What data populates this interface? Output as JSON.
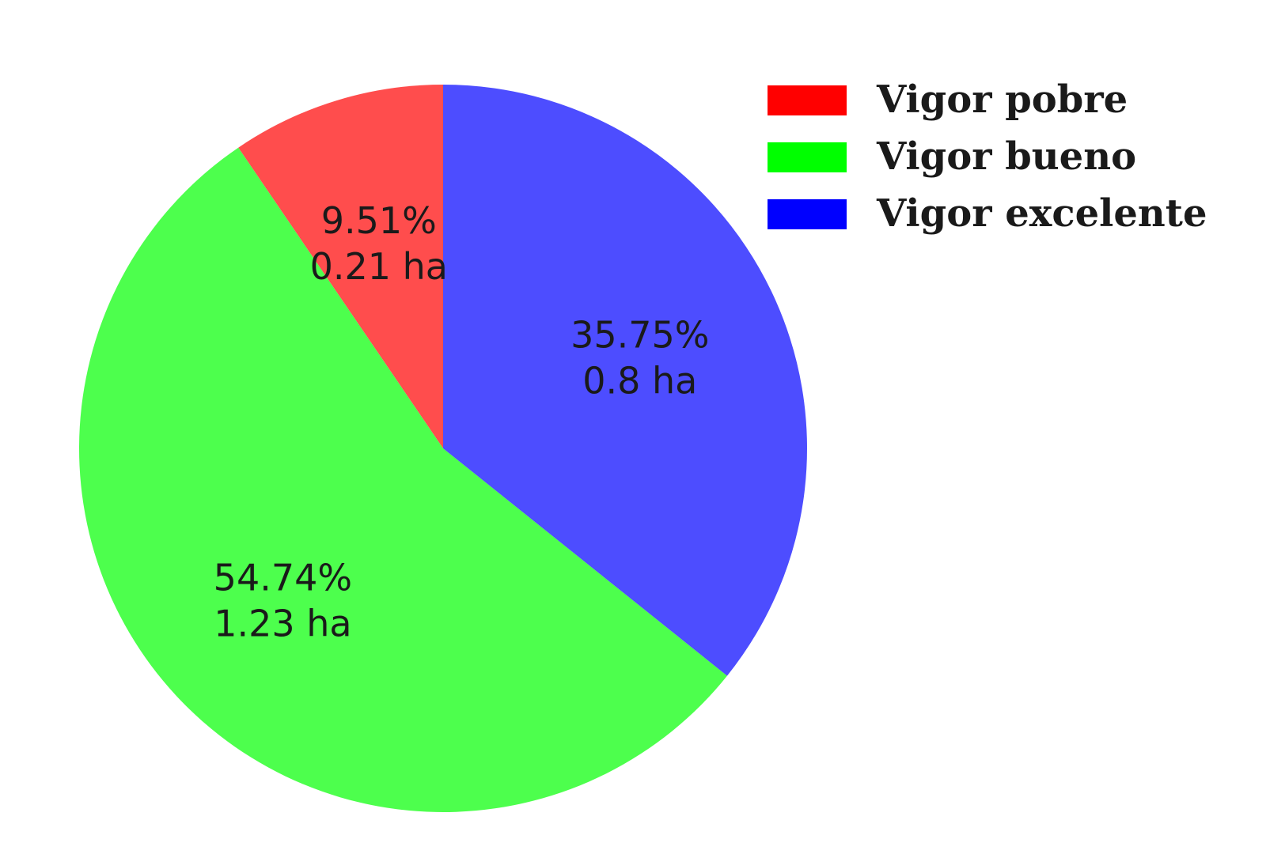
{
  "chart_data": {
    "type": "pie",
    "start_angle": "12 o'clock",
    "direction": "counter-clockwise",
    "legend_position": "top-right",
    "slices": [
      {
        "name": "Vigor pobre",
        "percent": 9.51,
        "area_ha": 0.21,
        "percent_label": "9.51%",
        "area_label": "0.21 ha",
        "color": "#ff4d4d",
        "legend_color": "#ff0000"
      },
      {
        "name": "Vigor bueno",
        "percent": 54.74,
        "area_ha": 1.23,
        "percent_label": "54.74%",
        "area_label": "1.23 ha",
        "color": "#4dff4d",
        "legend_color": "#00ff00"
      },
      {
        "name": "Vigor excelente",
        "percent": 35.75,
        "area_ha": 0.8,
        "percent_label": "35.75%",
        "area_label": "0.8 ha",
        "color": "#4d4dff",
        "legend_color": "#0000ff"
      }
    ]
  }
}
